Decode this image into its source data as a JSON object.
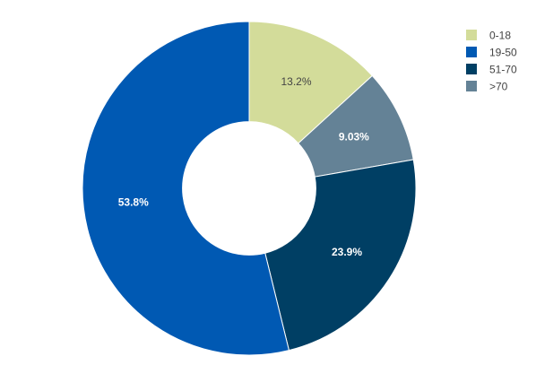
{
  "chart_data": {
    "type": "pie",
    "hole": 0.4,
    "direction": "clockwise",
    "start": "top",
    "sort": "none",
    "legend_position": "top-right",
    "slices": [
      {
        "label": "0-18",
        "value": 13.2,
        "text": "13.2%",
        "color": "#d3dc9a",
        "text_color": "#444444"
      },
      {
        "label": "19-50",
        "value": 53.8,
        "text": "53.8%",
        "color": "#0059b3",
        "text_color": "#ffffff"
      },
      {
        "label": "51-70",
        "value": 23.9,
        "text": "23.9%",
        "color": "#003f64",
        "text_color": "#ffffff"
      },
      {
        "label": ">70",
        "value": 9.03,
        "text": "9.03%",
        "color": "#648296",
        "text_color": "#ffffff"
      }
    ],
    "display_order": [
      "0-18",
      ">70",
      "51-70",
      "19-50"
    ]
  }
}
